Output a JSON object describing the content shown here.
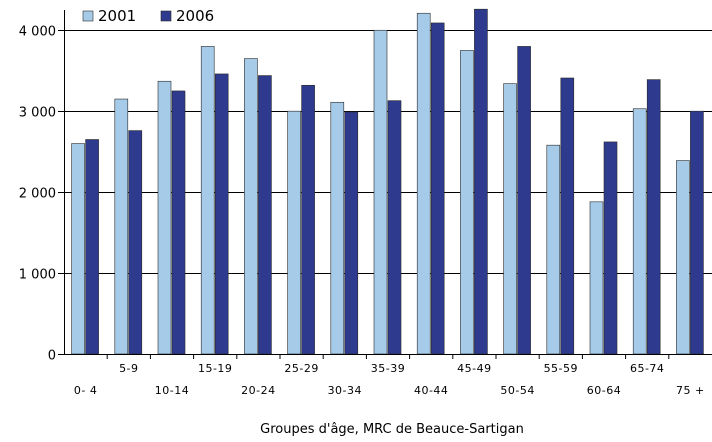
{
  "chart_data": {
    "type": "bar",
    "xlabel": "Groupes d'âge, MRC de Beauce-Sartigan",
    "ylabel": "",
    "ylim": [
      0,
      4250
    ],
    "yticks": [
      0,
      1000,
      2000,
      3000,
      4000
    ],
    "ytick_labels": [
      "0",
      "1 000",
      "2 000",
      "3 000",
      "4 000"
    ],
    "grid": true,
    "legend_position": "top-left",
    "categories": [
      "0-4",
      "5-9",
      "10-14",
      "15-19",
      "20-24",
      "25-29",
      "30-34",
      "35-39",
      "40-44",
      "45-49",
      "50-54",
      "55-59",
      "60-64",
      "65-74",
      "75 +"
    ],
    "category_labels": [
      "0- 4",
      "5-9",
      "10-14",
      "15-19",
      "20-24",
      "25-29",
      "30-34",
      "35-39",
      "40-44",
      "45-49",
      "50-54",
      "55-59",
      "60-64",
      "65-74",
      "75 +"
    ],
    "series": [
      {
        "name": "2001",
        "color": "#a6cbe8",
        "values": [
          2600,
          3150,
          3370,
          3800,
          3650,
          3000,
          3110,
          4000,
          4210,
          3750,
          3340,
          2580,
          1880,
          3030,
          2390
        ]
      },
      {
        "name": "2006",
        "color": "#2e3a8e",
        "values": [
          2650,
          2760,
          3250,
          3460,
          3440,
          3320,
          2990,
          3130,
          4090,
          4260,
          3800,
          3410,
          2620,
          3390,
          3000
        ]
      }
    ]
  }
}
